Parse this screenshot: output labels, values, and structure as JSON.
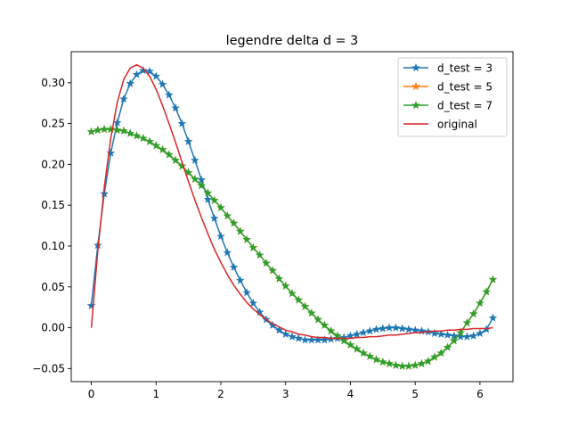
{
  "chart_data": {
    "type": "line",
    "title": "legendre delta d = 3",
    "xlabel": "",
    "ylabel": "",
    "xlim": [
      -0.31,
      6.51
    ],
    "ylim": [
      -0.066,
      0.338
    ],
    "grid": false,
    "legend_position": "top-right",
    "x_ticks": [
      0,
      1,
      2,
      3,
      4,
      5,
      6
    ],
    "x_tick_labels": [
      "0",
      "1",
      "2",
      "3",
      "4",
      "5",
      "6"
    ],
    "y_ticks": [
      -0.05,
      0.0,
      0.05,
      0.1,
      0.15,
      0.2,
      0.25,
      0.3
    ],
    "y_tick_labels": [
      "−0.05",
      "0.00",
      "0.05",
      "0.10",
      "0.15",
      "0.20",
      "0.25",
      "0.30"
    ],
    "x": [
      0.0,
      0.1,
      0.2,
      0.3,
      0.4,
      0.5,
      0.6,
      0.7,
      0.8,
      0.9,
      1.0,
      1.1,
      1.2,
      1.3,
      1.4,
      1.5,
      1.6,
      1.7,
      1.8,
      1.9,
      2.0,
      2.1,
      2.2,
      2.3,
      2.4,
      2.5,
      2.6,
      2.7,
      2.8,
      2.9,
      3.0,
      3.1,
      3.2,
      3.3,
      3.4,
      3.5,
      3.6,
      3.7,
      3.8,
      3.9,
      4.0,
      4.1,
      4.2,
      4.3,
      4.4,
      4.5,
      4.6,
      4.7,
      4.8,
      4.9,
      5.0,
      5.1,
      5.2,
      5.3,
      5.4,
      5.5,
      5.6,
      5.7,
      5.8,
      5.9,
      6.0,
      6.1,
      6.2
    ],
    "series": [
      {
        "name": "d_test = 3",
        "color": "#1f77b4",
        "marker": "star",
        "values": [
          0.027,
          0.101,
          0.164,
          0.214,
          0.251,
          0.28,
          0.299,
          0.31,
          0.315,
          0.314,
          0.308,
          0.298,
          0.285,
          0.269,
          0.25,
          0.228,
          0.205,
          0.181,
          0.157,
          0.134,
          0.112,
          0.092,
          0.074,
          0.058,
          0.043,
          0.03,
          0.019,
          0.01,
          0.003,
          -0.003,
          -0.008,
          -0.011,
          -0.013,
          -0.015,
          -0.015,
          -0.015,
          -0.015,
          -0.014,
          -0.013,
          -0.012,
          -0.01,
          -0.008,
          -0.006,
          -0.004,
          -0.002,
          -0.001,
          0.0,
          0.0,
          -0.001,
          -0.002,
          -0.003,
          -0.004,
          -0.005,
          -0.007,
          -0.008,
          -0.009,
          -0.01,
          -0.011,
          -0.011,
          -0.01,
          -0.007,
          -0.002,
          0.012
        ]
      },
      {
        "name": "d_test = 5",
        "color": "#ff7f0e",
        "marker": "star",
        "values": [
          0.24,
          0.242,
          0.243,
          0.243,
          0.242,
          0.241,
          0.238,
          0.235,
          0.232,
          0.228,
          0.223,
          0.218,
          0.212,
          0.205,
          0.198,
          0.19,
          0.182,
          0.174,
          0.165,
          0.156,
          0.147,
          0.137,
          0.128,
          0.118,
          0.108,
          0.098,
          0.089,
          0.079,
          0.07,
          0.06,
          0.051,
          0.042,
          0.034,
          0.026,
          0.018,
          0.01,
          0.003,
          -0.004,
          -0.01,
          -0.016,
          -0.021,
          -0.026,
          -0.031,
          -0.035,
          -0.039,
          -0.042,
          -0.044,
          -0.046,
          -0.047,
          -0.047,
          -0.046,
          -0.044,
          -0.041,
          -0.036,
          -0.031,
          -0.024,
          -0.016,
          -0.006,
          0.006,
          0.017,
          0.03,
          0.044,
          0.059
        ]
      },
      {
        "name": "d_test = 7",
        "color": "#2ca02c",
        "marker": "star",
        "values": [
          0.24,
          0.242,
          0.243,
          0.243,
          0.242,
          0.241,
          0.238,
          0.235,
          0.232,
          0.228,
          0.223,
          0.218,
          0.212,
          0.205,
          0.198,
          0.19,
          0.182,
          0.174,
          0.165,
          0.156,
          0.147,
          0.137,
          0.128,
          0.118,
          0.108,
          0.098,
          0.089,
          0.079,
          0.07,
          0.06,
          0.051,
          0.042,
          0.034,
          0.026,
          0.018,
          0.01,
          0.003,
          -0.004,
          -0.01,
          -0.016,
          -0.021,
          -0.026,
          -0.031,
          -0.035,
          -0.039,
          -0.042,
          -0.044,
          -0.046,
          -0.047,
          -0.047,
          -0.046,
          -0.044,
          -0.041,
          -0.036,
          -0.031,
          -0.024,
          -0.016,
          -0.006,
          0.006,
          0.017,
          0.03,
          0.044,
          0.059
        ]
      },
      {
        "name": "original",
        "color": "#d62728",
        "marker": "none",
        "values": [
          0.0,
          0.094,
          0.172,
          0.232,
          0.276,
          0.304,
          0.318,
          0.322,
          0.318,
          0.308,
          0.292,
          0.272,
          0.25,
          0.227,
          0.203,
          0.179,
          0.156,
          0.135,
          0.115,
          0.096,
          0.08,
          0.065,
          0.052,
          0.041,
          0.031,
          0.023,
          0.016,
          0.01,
          0.005,
          0.001,
          -0.003,
          -0.005,
          -0.008,
          -0.009,
          -0.011,
          -0.012,
          -0.012,
          -0.013,
          -0.013,
          -0.013,
          -0.013,
          -0.012,
          -0.012,
          -0.011,
          -0.011,
          -0.01,
          -0.009,
          -0.009,
          -0.008,
          -0.007,
          -0.006,
          -0.006,
          -0.005,
          -0.004,
          -0.004,
          -0.003,
          -0.003,
          -0.002,
          -0.002,
          -0.001,
          -0.001,
          -0.001,
          0.0
        ]
      }
    ]
  }
}
